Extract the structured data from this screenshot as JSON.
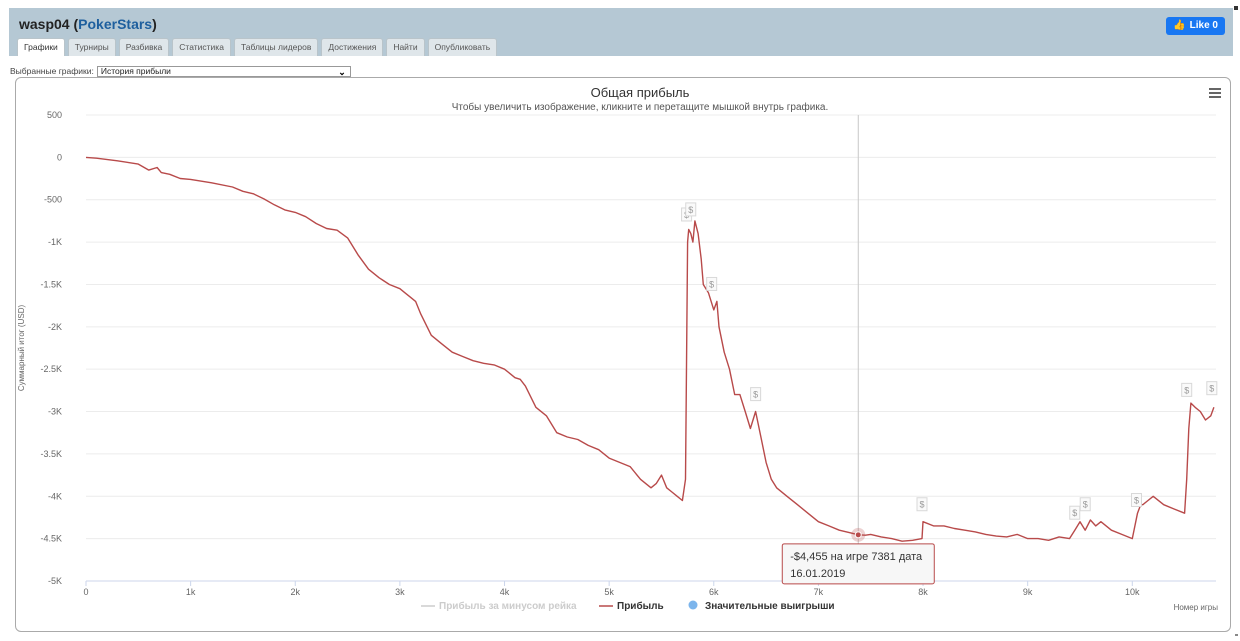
{
  "page": {
    "player": "wasp04",
    "site": "PokerStars",
    "like_label": "Like 0"
  },
  "tabs": [
    {
      "label": "Графики",
      "active": true
    },
    {
      "label": "Турниры",
      "active": false
    },
    {
      "label": "Разбивка",
      "active": false
    },
    {
      "label": "Статистика",
      "active": false
    },
    {
      "label": "Таблицы лидеров",
      "active": false
    },
    {
      "label": "Достижения",
      "active": false
    },
    {
      "label": "Найти",
      "active": false
    },
    {
      "label": "Опубликовать",
      "active": false
    }
  ],
  "selector": {
    "label": "Выбранные графики:",
    "value": "История прибыли"
  },
  "tooltip": {
    "line1": "-$4,455 на игре 7381 дата",
    "line2": "16.01.2019",
    "x": 7381,
    "y": -4455
  },
  "colors": {
    "profit_line": "#b84a4a",
    "rake_line": "#cccccc",
    "big_wins_marker": "#7cb5ec",
    "header_bg": "#b5c8d4",
    "site_link": "#1e5f9e",
    "title_color": "#333333"
  },
  "chart_data": {
    "type": "line",
    "title": "Общая прибыль",
    "subtitle": "Чтобы увеличить изображение, кликните и перетащите мышкой внутрь графика.",
    "xlabel": "Номер игры",
    "ylabel": "Суммарный итог (USD)",
    "xlim": [
      0,
      10800
    ],
    "ylim": [
      -5000,
      500
    ],
    "x_ticks": [
      0,
      1000,
      2000,
      3000,
      4000,
      5000,
      6000,
      7000,
      8000,
      9000,
      10000
    ],
    "x_tick_labels": [
      "0",
      "1k",
      "2k",
      "3k",
      "4k",
      "5k",
      "6k",
      "7k",
      "8k",
      "9k",
      "10k"
    ],
    "y_ticks": [
      500,
      0,
      -500,
      -1000,
      -1500,
      -2000,
      -2500,
      -3000,
      -3500,
      -4000,
      -4500,
      -5000
    ],
    "y_tick_labels": [
      "500",
      "0",
      "-500",
      "-1K",
      "-1.5K",
      "-2K",
      "-2.5K",
      "-3K",
      "-3.5K",
      "-4K",
      "-4.5K",
      "-5K"
    ],
    "grid": true,
    "legend_position": "bottom-center",
    "legend": [
      {
        "name": "Прибыль за минусом рейка",
        "color": "#cccccc",
        "kind": "line",
        "faded": true
      },
      {
        "name": "Прибыль",
        "color": "#b84a4a",
        "kind": "line",
        "faded": false
      },
      {
        "name": "Значительные выигрыши",
        "color": "#7cb5ec",
        "kind": "dot",
        "faded": false
      }
    ],
    "series": [
      {
        "name": "Прибыль",
        "x": [
          0,
          100,
          300,
          500,
          600,
          680,
          720,
          800,
          900,
          1000,
          1200,
          1400,
          1500,
          1600,
          1700,
          1800,
          1900,
          2000,
          2100,
          2200,
          2300,
          2400,
          2500,
          2600,
          2700,
          2800,
          2900,
          3000,
          3050,
          3100,
          3150,
          3200,
          3300,
          3400,
          3500,
          3600,
          3700,
          3800,
          3900,
          4000,
          4050,
          4100,
          4150,
          4200,
          4300,
          4400,
          4500,
          4600,
          4700,
          4800,
          4900,
          5000,
          5100,
          5200,
          5300,
          5400,
          5450,
          5500,
          5550,
          5600,
          5650,
          5700,
          5730,
          5750,
          5760,
          5780,
          5800,
          5820,
          5850,
          5880,
          5900,
          5950,
          6000,
          6030,
          6050,
          6100,
          6150,
          6200,
          6250,
          6300,
          6350,
          6400,
          6450,
          6500,
          6550,
          6600,
          6700,
          6800,
          6900,
          7000,
          7100,
          7200,
          7300,
          7381,
          7450,
          7500,
          7600,
          7700,
          7800,
          7900,
          7990,
          8000,
          8100,
          8200,
          8300,
          8400,
          8500,
          8600,
          8700,
          8800,
          8900,
          9000,
          9100,
          9200,
          9300,
          9400,
          9450,
          9500,
          9550,
          9600,
          9650,
          9700,
          9800,
          9900,
          10000,
          10050,
          10080,
          10100,
          10150,
          10200,
          10300,
          10400,
          10500,
          10520,
          10540,
          10560,
          10600,
          10650,
          10700,
          10750,
          10780
        ],
        "y": [
          0,
          -10,
          -40,
          -80,
          -150,
          -120,
          -180,
          -200,
          -250,
          -260,
          -300,
          -350,
          -400,
          -430,
          -490,
          -560,
          -620,
          -650,
          -700,
          -780,
          -840,
          -860,
          -950,
          -1150,
          -1320,
          -1420,
          -1500,
          -1550,
          -1600,
          -1650,
          -1700,
          -1850,
          -2100,
          -2200,
          -2300,
          -2350,
          -2400,
          -2430,
          -2450,
          -2500,
          -2550,
          -2600,
          -2620,
          -2700,
          -2950,
          -3050,
          -3250,
          -3300,
          -3330,
          -3400,
          -3450,
          -3550,
          -3600,
          -3650,
          -3800,
          -3900,
          -3850,
          -3750,
          -3900,
          -3950,
          -4000,
          -4050,
          -3800,
          -1000,
          -850,
          -900,
          -1000,
          -750,
          -900,
          -1200,
          -1500,
          -1600,
          -1800,
          -1700,
          -2000,
          -2300,
          -2500,
          -2800,
          -2800,
          -3000,
          -3200,
          -3000,
          -3300,
          -3600,
          -3800,
          -3900,
          -4000,
          -4100,
          -4200,
          -4300,
          -4350,
          -4400,
          -4430,
          -4455,
          -4460,
          -4450,
          -4480,
          -4500,
          -4530,
          -4520,
          -4500,
          -4300,
          -4350,
          -4350,
          -4380,
          -4400,
          -4420,
          -4450,
          -4470,
          -4480,
          -4450,
          -4500,
          -4500,
          -4520,
          -4480,
          -4500,
          -4400,
          -4300,
          -4400,
          -4280,
          -4350,
          -4300,
          -4400,
          -4450,
          -4500,
          -4200,
          -4100,
          -4100,
          -4050,
          -4000,
          -4100,
          -4150,
          -4200,
          -3800,
          -3200,
          -2900,
          -2950,
          -3000,
          -3100,
          -3050,
          -2950
        ]
      }
    ],
    "big_win_markers": [
      {
        "x": 5740,
        "y": -680,
        "label": "$"
      },
      {
        "x": 5780,
        "y": -620,
        "label": "$"
      },
      {
        "x": 5980,
        "y": -1500,
        "label": "$"
      },
      {
        "x": 6400,
        "y": -2800,
        "label": "$"
      },
      {
        "x": 7990,
        "y": -4100,
        "label": "$"
      },
      {
        "x": 9450,
        "y": -4200,
        "label": "$"
      },
      {
        "x": 9550,
        "y": -4100,
        "label": "$"
      },
      {
        "x": 10040,
        "y": -4050,
        "label": "$"
      },
      {
        "x": 10520,
        "y": -2750,
        "label": "$"
      },
      {
        "x": 10760,
        "y": -2730,
        "label": "$"
      }
    ]
  }
}
